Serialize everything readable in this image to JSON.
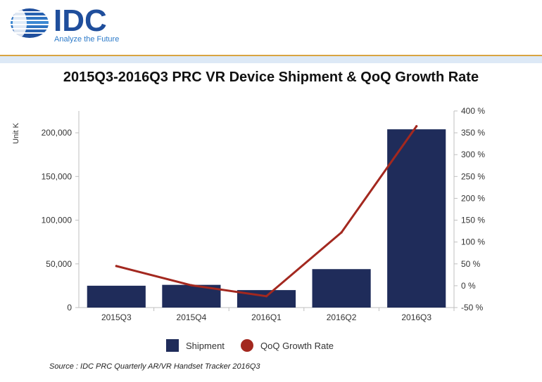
{
  "brand": {
    "name": "IDC",
    "tagline": "Analyze the Future",
    "colors": {
      "logo_blue": "#1f4e9c",
      "tagline_blue": "#2c7ac9",
      "gold_rule": "#d9a441",
      "light_band": "#dde9f6"
    }
  },
  "chart_data": {
    "type": "bar",
    "title": "2015Q3-2016Q3 PRC VR Device Shipment & QoQ Growth Rate",
    "categories": [
      "2015Q3",
      "2015Q4",
      "2016Q1",
      "2016Q2",
      "2016Q3"
    ],
    "ylabel": "Unit K",
    "ylim": [
      0,
      225000
    ],
    "yticks": [
      0,
      50000,
      100000,
      150000,
      200000
    ],
    "ytick_labels": [
      "0",
      "50,000",
      "100,000",
      "150,000",
      "200,000"
    ],
    "y2lim": [
      -50,
      400
    ],
    "y2ticks": [
      -50,
      0,
      50,
      100,
      150,
      200,
      250,
      300,
      350,
      400
    ],
    "y2tick_labels": [
      "-50 %",
      "0 %",
      "50 %",
      "100 %",
      "150 %",
      "200 %",
      "250 %",
      "300 %",
      "350 %",
      "400 %"
    ],
    "series": [
      {
        "name": "Shipment",
        "kind": "bar",
        "axis": "left",
        "color": "#1f2c5a",
        "values": [
          25000,
          26000,
          20000,
          44000,
          204000
        ]
      },
      {
        "name": "QoQ Growth Rate",
        "kind": "line",
        "axis": "right",
        "color": "#a3281f",
        "values": [
          45,
          1,
          -24,
          122,
          365
        ]
      }
    ],
    "legend_position": "bottom",
    "grid": false
  },
  "source": "Source : IDC PRC Quarterly AR/VR Handset Tracker 2016Q3"
}
